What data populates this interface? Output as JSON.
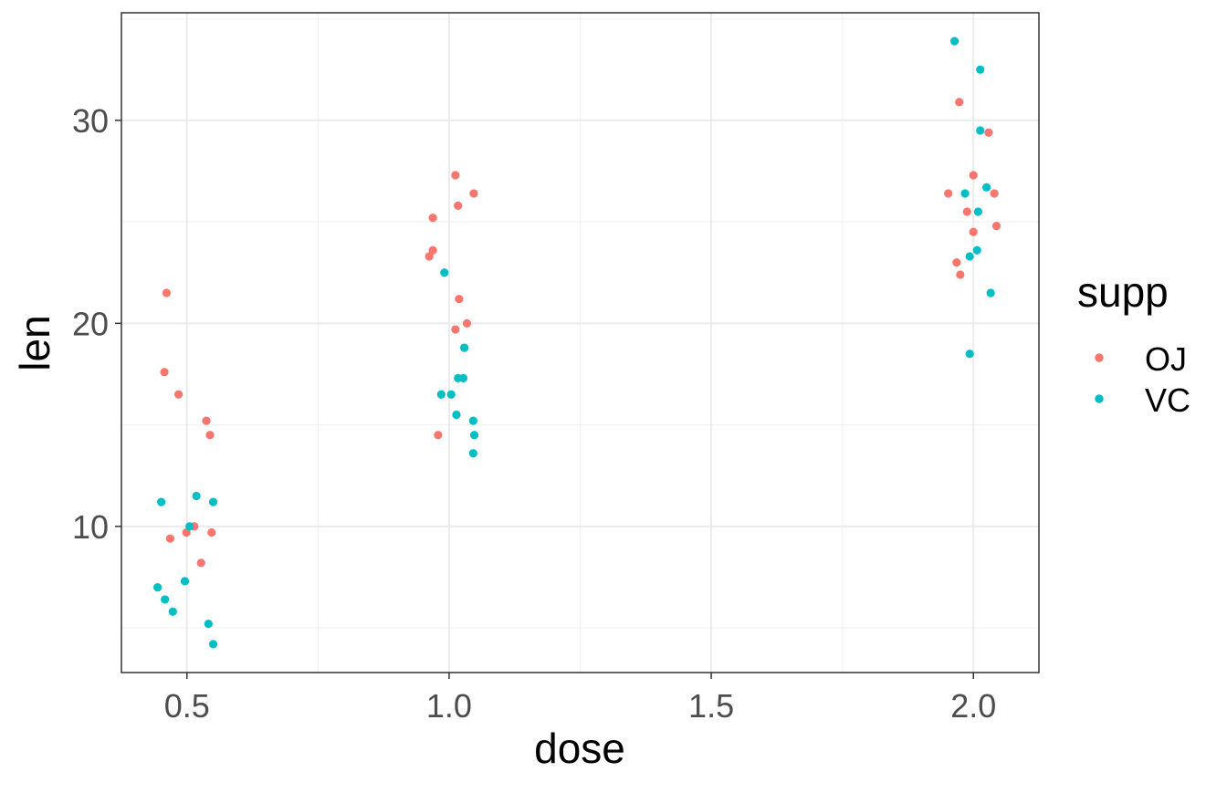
{
  "chart_data": {
    "type": "scatter",
    "xlabel": "dose",
    "ylabel": "len",
    "xlim": [
      0.375,
      2.125
    ],
    "ylim": [
      2.8,
      35.3
    ],
    "x_ticks": [
      {
        "value": 0.5,
        "label": "0.5"
      },
      {
        "value": 1.0,
        "label": "1.0"
      },
      {
        "value": 1.5,
        "label": "1.5"
      },
      {
        "value": 2.0,
        "label": "2.0"
      }
    ],
    "y_ticks": [
      {
        "value": 10,
        "label": "10"
      },
      {
        "value": 20,
        "label": "20"
      },
      {
        "value": 30,
        "label": "30"
      }
    ],
    "x_minor_ticks": [
      0.75,
      1.25,
      1.75
    ],
    "y_minor_ticks": [
      5,
      15,
      25,
      35
    ],
    "grid": true,
    "theme": "bw",
    "legend": {
      "title": "supp",
      "position": "right",
      "entries": [
        {
          "label": "OJ",
          "color": "#F8766D"
        },
        {
          "label": "VC",
          "color": "#00BFC4"
        }
      ]
    },
    "series": [
      {
        "name": "OJ",
        "color": "#F8766D",
        "points": [
          {
            "x": 0.461,
            "y": 21.5
          },
          {
            "x": 0.457,
            "y": 17.6
          },
          {
            "x": 0.484,
            "y": 16.5
          },
          {
            "x": 0.537,
            "y": 15.2
          },
          {
            "x": 0.544,
            "y": 14.5
          },
          {
            "x": 0.514,
            "y": 10.0
          },
          {
            "x": 0.499,
            "y": 9.7
          },
          {
            "x": 0.547,
            "y": 9.7
          },
          {
            "x": 0.468,
            "y": 9.4
          },
          {
            "x": 0.527,
            "y": 8.2
          },
          {
            "x": 1.012,
            "y": 27.3
          },
          {
            "x": 1.047,
            "y": 26.4
          },
          {
            "x": 1.017,
            "y": 25.8
          },
          {
            "x": 0.969,
            "y": 25.2
          },
          {
            "x": 0.969,
            "y": 23.6
          },
          {
            "x": 0.962,
            "y": 23.3
          },
          {
            "x": 1.019,
            "y": 21.2
          },
          {
            "x": 1.034,
            "y": 20.0
          },
          {
            "x": 1.012,
            "y": 19.7
          },
          {
            "x": 0.979,
            "y": 14.5
          },
          {
            "x": 1.973,
            "y": 30.9
          },
          {
            "x": 2.029,
            "y": 29.4
          },
          {
            "x": 2.0,
            "y": 27.3
          },
          {
            "x": 1.952,
            "y": 26.4
          },
          {
            "x": 2.04,
            "y": 26.4
          },
          {
            "x": 1.988,
            "y": 25.5
          },
          {
            "x": 2.044,
            "y": 24.8
          },
          {
            "x": 2.0,
            "y": 24.5
          },
          {
            "x": 1.968,
            "y": 23.0
          },
          {
            "x": 1.975,
            "y": 22.4
          }
        ]
      },
      {
        "name": "VC",
        "color": "#00BFC4",
        "points": [
          {
            "x": 0.518,
            "y": 11.5
          },
          {
            "x": 0.451,
            "y": 11.2
          },
          {
            "x": 0.55,
            "y": 11.2
          },
          {
            "x": 0.505,
            "y": 10.0
          },
          {
            "x": 0.496,
            "y": 7.3
          },
          {
            "x": 0.444,
            "y": 7.0
          },
          {
            "x": 0.458,
            "y": 6.4
          },
          {
            "x": 0.473,
            "y": 5.8
          },
          {
            "x": 0.541,
            "y": 5.2
          },
          {
            "x": 0.55,
            "y": 4.2
          },
          {
            "x": 0.991,
            "y": 22.5
          },
          {
            "x": 1.029,
            "y": 18.8
          },
          {
            "x": 1.017,
            "y": 17.3
          },
          {
            "x": 1.027,
            "y": 17.3
          },
          {
            "x": 0.985,
            "y": 16.5
          },
          {
            "x": 1.004,
            "y": 16.5
          },
          {
            "x": 1.014,
            "y": 15.5
          },
          {
            "x": 1.046,
            "y": 15.2
          },
          {
            "x": 1.048,
            "y": 14.5
          },
          {
            "x": 1.046,
            "y": 13.6
          },
          {
            "x": 1.964,
            "y": 33.9
          },
          {
            "x": 2.013,
            "y": 32.5
          },
          {
            "x": 2.013,
            "y": 29.5
          },
          {
            "x": 2.025,
            "y": 26.7
          },
          {
            "x": 1.984,
            "y": 26.4
          },
          {
            "x": 2.009,
            "y": 25.5
          },
          {
            "x": 2.007,
            "y": 23.6
          },
          {
            "x": 1.993,
            "y": 23.3
          },
          {
            "x": 2.033,
            "y": 21.5
          },
          {
            "x": 1.993,
            "y": 18.5
          }
        ]
      }
    ]
  }
}
